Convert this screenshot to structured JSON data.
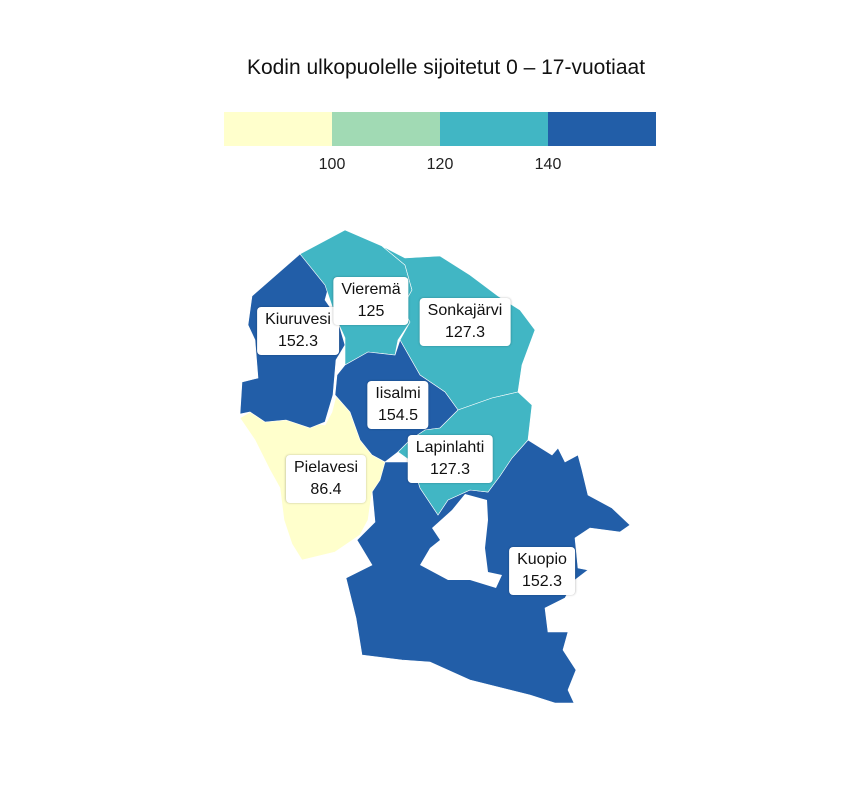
{
  "title": "Kodin ulkopuolelle sijoitetut 0 – 17-vuotiaat",
  "legend": {
    "colors": [
      "#ffffcc",
      "#a1dab4",
      "#41b6c4",
      "#225ea8"
    ],
    "ticks": [
      "100",
      "120",
      "140"
    ]
  },
  "regions": [
    {
      "name": "Kiuruvesi",
      "value": "152.3",
      "color": "#225ea8"
    },
    {
      "name": "Vieremä",
      "value": "125",
      "color": "#41b6c4"
    },
    {
      "name": "Sonkajärvi",
      "value": "127.3",
      "color": "#41b6c4"
    },
    {
      "name": "Iisalmi",
      "value": "154.5",
      "color": "#225ea8"
    },
    {
      "name": "Pielavesi",
      "value": "86.4",
      "color": "#ffffcc"
    },
    {
      "name": "Lapinlahti",
      "value": "127.3",
      "color": "#41b6c4"
    },
    {
      "name": "Kuopio",
      "value": "152.3",
      "color": "#225ea8"
    }
  ]
}
